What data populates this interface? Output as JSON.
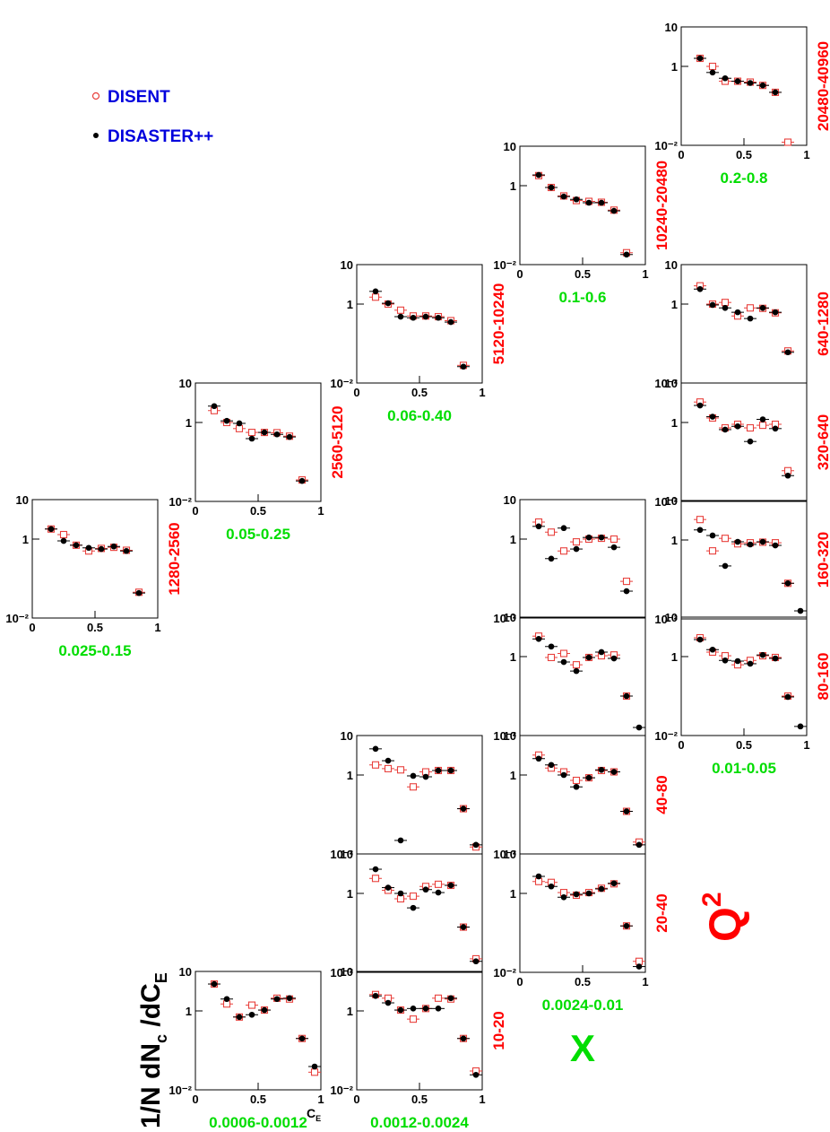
{
  "legend": [
    {
      "name": "DISENT",
      "color": "#e8403c"
    },
    {
      "name": "DISASTER++",
      "color": "#000000"
    }
  ],
  "y_label": [
    "1/N dN",
    "c",
    " /dC",
    "E"
  ],
  "x_label": [
    "C",
    "E"
  ],
  "q2_title": [
    "Q",
    "2"
  ],
  "x_title": "X",
  "chart_data": [
    {
      "type": "scatter",
      "q2_range": "20480-40960",
      "x_range": "0.2-0.8",
      "x": [
        0.15,
        0.25,
        0.35,
        0.45,
        0.55,
        0.65,
        0.75,
        0.85,
        0.95
      ],
      "xlim": [
        0,
        1
      ],
      "xticks": [
        0,
        0.5,
        1
      ],
      "ylim": [
        0.01,
        10
      ],
      "ylog": true,
      "yticks": [
        {
          "value": 0.01,
          "label": "10⁻²"
        },
        1,
        10
      ],
      "series": [
        {
          "values": [
            1.6,
            1.0,
            0.42,
            0.42,
            0.4,
            0.33,
            0.22,
            0.012,
            null
          ]
        },
        {
          "values": [
            1.6,
            0.7,
            0.5,
            0.42,
            0.38,
            0.33,
            0.22,
            null,
            null
          ]
        }
      ]
    },
    {
      "type": "scatter",
      "q2_range": "10240-20480",
      "x_range": "0.1-0.6",
      "x": [
        0.15,
        0.25,
        0.35,
        0.45,
        0.55,
        0.65,
        0.75,
        0.85,
        0.95
      ],
      "xlim": [
        0,
        1
      ],
      "xticks": [
        0,
        0.5,
        1
      ],
      "ylim": [
        0.01,
        10
      ],
      "ylog": true,
      "yticks": [
        {
          "value": 0.01,
          "label": "10⁻²"
        },
        1,
        10
      ],
      "series": [
        {
          "values": [
            1.8,
            0.9,
            0.55,
            0.42,
            0.4,
            0.38,
            0.24,
            0.02,
            null
          ]
        },
        {
          "values": [
            1.87,
            0.9,
            0.53,
            0.45,
            0.37,
            0.37,
            0.23,
            0.018,
            null
          ]
        }
      ]
    },
    {
      "type": "scatter",
      "q2_range": "5120-10240",
      "x_range": "0.06-0.40",
      "x": [
        0.15,
        0.25,
        0.35,
        0.45,
        0.55,
        0.65,
        0.75,
        0.85,
        0.95
      ],
      "xlim": [
        0,
        1
      ],
      "xticks": [
        0,
        0.5,
        1
      ],
      "ylim": [
        0.01,
        10
      ],
      "ylog": true,
      "yticks": [
        {
          "value": 0.01,
          "label": "10⁻²"
        },
        1,
        10
      ],
      "series": [
        {
          "values": [
            1.5,
            1.0,
            0.7,
            0.5,
            0.5,
            0.48,
            0.38,
            0.028,
            null
          ]
        },
        {
          "values": [
            2.1,
            1.05,
            0.48,
            0.45,
            0.48,
            0.45,
            0.35,
            0.026,
            null
          ]
        }
      ]
    },
    {
      "type": "scatter",
      "q2_range": "2560-5120",
      "x_range": "0.05-0.25",
      "x": [
        0.15,
        0.25,
        0.35,
        0.45,
        0.55,
        0.65,
        0.75,
        0.85,
        0.95
      ],
      "xlim": [
        0,
        1
      ],
      "xticks": [
        0,
        0.5,
        1
      ],
      "ylim": [
        0.01,
        10
      ],
      "ylog": true,
      "yticks": [
        {
          "value": 0.01,
          "label": "10⁻²"
        },
        1,
        10
      ],
      "series": [
        {
          "values": [
            2.0,
            1.0,
            0.7,
            0.56,
            0.56,
            0.55,
            0.45,
            0.035,
            null
          ]
        },
        {
          "values": [
            2.6,
            1.1,
            0.95,
            0.39,
            0.56,
            0.5,
            0.43,
            0.033,
            null
          ]
        }
      ]
    },
    {
      "type": "scatter",
      "q2_range": "1280-2560",
      "x_range": "0.025-0.15",
      "x": [
        0.15,
        0.25,
        0.35,
        0.45,
        0.55,
        0.65,
        0.75,
        0.85,
        0.95
      ],
      "xlim": [
        0,
        1
      ],
      "xticks": [
        0,
        0.5,
        1
      ],
      "ylim": [
        0.01,
        10
      ],
      "ylog": true,
      "yticks": [
        {
          "value": 0.01,
          "label": "10⁻²"
        },
        1,
        10
      ],
      "series": [
        {
          "values": [
            1.8,
            1.3,
            0.7,
            0.5,
            0.58,
            0.62,
            0.52,
            0.045,
            null
          ]
        },
        {
          "values": [
            1.8,
            0.9,
            0.7,
            0.6,
            0.56,
            0.65,
            0.5,
            0.043,
            null
          ]
        }
      ]
    },
    {
      "type": "scatter",
      "q2_range": "640-1280",
      "x": [
        0.15,
        0.25,
        0.35,
        0.45,
        0.55,
        0.65,
        0.75,
        0.85,
        0.95
      ],
      "xlim": [
        0,
        1
      ],
      "ylim": [
        0.01,
        10
      ],
      "ylog": true,
      "yticks": [
        {
          "value": 0.01,
          "label": "10⁻²"
        },
        1,
        10
      ],
      "series": [
        {
          "values": [
            2.9,
            1.0,
            1.1,
            0.5,
            0.8,
            0.78,
            0.6,
            0.065,
            null
          ]
        },
        {
          "values": [
            2.4,
            0.95,
            0.8,
            0.62,
            0.43,
            0.8,
            0.62,
            0.06,
            null
          ]
        }
      ]
    },
    {
      "type": "scatter",
      "q2_range": "320-640",
      "x": [
        0.15,
        0.25,
        0.35,
        0.45,
        0.55,
        0.65,
        0.75,
        0.85,
        0.95
      ],
      "xlim": [
        0,
        1
      ],
      "ylim": [
        0.01,
        10
      ],
      "ylog": true,
      "yticks": [
        {
          "value": 0.01,
          "label": "10⁻²"
        },
        1,
        10
      ],
      "series": [
        {
          "values": [
            3.3,
            1.3,
            0.73,
            0.9,
            0.73,
            0.85,
            0.9,
            0.06,
            null
          ]
        },
        {
          "values": [
            2.7,
            1.4,
            0.66,
            0.8,
            0.33,
            1.2,
            0.7,
            0.045,
            null
          ]
        }
      ]
    },
    {
      "type": "scatter",
      "q2_range": "160-320",
      "x": [
        0.15,
        0.25,
        0.35,
        0.45,
        0.55,
        0.65,
        0.75,
        0.85,
        0.95
      ],
      "xlim": [
        0,
        1
      ],
      "ylim": [
        0.01,
        10
      ],
      "ylog": true,
      "yticks": [
        {
          "value": 0.01,
          "label": "10⁻²"
        },
        1,
        10
      ],
      "series": [
        {
          "values": [
            3.3,
            0.53,
            1.1,
            0.8,
            0.85,
            0.88,
            0.85,
            0.08,
            null
          ]
        },
        {
          "values": [
            1.8,
            1.3,
            0.22,
            0.9,
            0.77,
            0.9,
            0.73,
            0.08,
            0.016
          ]
        }
      ]
    },
    {
      "type": "scatter",
      "q2_range": "80-160",
      "x_range": "0.01-0.05",
      "x": [
        0.15,
        0.25,
        0.35,
        0.45,
        0.55,
        0.65,
        0.75,
        0.85,
        0.95
      ],
      "xlim": [
        0,
        1
      ],
      "xticks": [
        0,
        0.5,
        1
      ],
      "ylim": [
        0.01,
        10
      ],
      "ylog": true,
      "yticks": [
        {
          "value": 0.01,
          "label": "10⁻²"
        },
        1,
        10
      ],
      "series": [
        {
          "values": [
            3.0,
            1.3,
            1.05,
            0.62,
            0.8,
            1.05,
            0.95,
            0.1,
            null
          ]
        },
        {
          "values": [
            2.7,
            1.5,
            0.8,
            0.77,
            0.66,
            1.1,
            0.9,
            0.095,
            0.017
          ]
        }
      ]
    },
    {
      "type": "scatter",
      "x": [
        0.15,
        0.25,
        0.35,
        0.45,
        0.55,
        0.65,
        0.75,
        0.85,
        0.95
      ],
      "xlim": [
        0,
        1
      ],
      "ylim": [
        0.01,
        10
      ],
      "ylog": true,
      "yticks": [
        {
          "value": 0.01,
          "label": "10⁻²"
        },
        1,
        10
      ],
      "series": [
        {
          "values": [
            2.7,
            1.5,
            0.5,
            0.85,
            1.0,
            1.05,
            1.0,
            0.085,
            null
          ]
        },
        {
          "values": [
            2.1,
            0.32,
            1.9,
            0.56,
            1.1,
            1.1,
            0.62,
            0.048,
            null
          ]
        }
      ]
    },
    {
      "type": "scatter",
      "x": [
        0.15,
        0.25,
        0.35,
        0.45,
        0.55,
        0.65,
        0.75,
        0.85,
        0.95
      ],
      "xlim": [
        0,
        1
      ],
      "ylim": [
        0.01,
        10
      ],
      "ylog": true,
      "yticks": [
        {
          "value": 0.01,
          "label": "10⁻²"
        },
        1,
        10
      ],
      "series": [
        {
          "values": [
            3.3,
            0.95,
            1.2,
            0.62,
            0.95,
            1.05,
            1.1,
            0.1,
            null
          ]
        },
        {
          "values": [
            2.8,
            1.8,
            0.73,
            0.43,
            0.95,
            1.3,
            0.9,
            0.1,
            0.016
          ]
        }
      ]
    },
    {
      "type": "scatter",
      "q2_range": "40-80",
      "x": [
        0.15,
        0.25,
        0.35,
        0.45,
        0.55,
        0.65,
        0.75,
        0.85,
        0.95
      ],
      "xlim": [
        0,
        1
      ],
      "ylim": [
        0.01,
        10
      ],
      "ylog": true,
      "yticks": [
        {
          "value": 0.01,
          "label": "10⁻²"
        },
        1,
        10
      ],
      "series": [
        {
          "values": [
            3.2,
            1.5,
            1.2,
            0.73,
            0.85,
            1.3,
            1.2,
            0.12,
            0.02
          ]
        },
        {
          "values": [
            2.6,
            1.8,
            1.0,
            0.5,
            0.85,
            1.35,
            1.2,
            0.12,
            0.017
          ]
        }
      ]
    },
    {
      "type": "scatter",
      "q2_range": "20-40",
      "x_range": "0.0024-0.01",
      "x": [
        0.15,
        0.25,
        0.35,
        0.45,
        0.55,
        0.65,
        0.75,
        0.85,
        0.95
      ],
      "xlim": [
        0,
        1
      ],
      "xticks": [
        0,
        0.5,
        1
      ],
      "ylim": [
        0.01,
        10
      ],
      "ylog": true,
      "yticks": [
        {
          "value": 0.01,
          "label": "10⁻²"
        },
        1,
        10
      ],
      "series": [
        {
          "values": [
            2.0,
            1.9,
            1.05,
            0.9,
            1.05,
            1.35,
            1.75,
            0.15,
            0.019
          ]
        },
        {
          "values": [
            2.7,
            1.5,
            0.8,
            0.95,
            1.0,
            1.3,
            1.8,
            0.15,
            0.014
          ]
        }
      ]
    },
    {
      "type": "scatter",
      "x": [
        0.15,
        0.25,
        0.35,
        0.45,
        0.55,
        0.65,
        0.75,
        0.85,
        0.95
      ],
      "xlim": [
        0,
        1
      ],
      "ylim": [
        0.01,
        10
      ],
      "ylog": true,
      "yticks": [
        {
          "value": 0.01,
          "label": "10⁻²"
        },
        1,
        10
      ],
      "series": [
        {
          "values": [
            1.8,
            1.45,
            1.35,
            0.5,
            1.2,
            1.3,
            1.3,
            0.14,
            0.015
          ]
        },
        {
          "values": [
            4.6,
            2.3,
            0.022,
            0.95,
            0.9,
            1.3,
            1.3,
            0.14,
            0.017
          ]
        }
      ]
    },
    {
      "type": "scatter",
      "x": [
        0.15,
        0.25,
        0.35,
        0.45,
        0.55,
        0.65,
        0.75,
        0.85,
        0.95
      ],
      "xlim": [
        0,
        1
      ],
      "ylim": [
        0.01,
        10
      ],
      "ylog": true,
      "yticks": [
        {
          "value": 0.01,
          "label": "10⁻²"
        },
        1,
        10
      ],
      "series": [
        {
          "values": [
            2.4,
            1.2,
            0.73,
            0.85,
            1.5,
            1.7,
            1.6,
            0.14,
            0.022
          ]
        },
        {
          "values": [
            4.1,
            1.4,
            1.0,
            0.43,
            1.25,
            1.05,
            1.6,
            0.14,
            0.019
          ]
        }
      ]
    },
    {
      "type": "scatter",
      "q2_range": "10-20",
      "x_range": "0.0012-0.0024",
      "x": [
        0.15,
        0.25,
        0.35,
        0.45,
        0.55,
        0.65,
        0.75,
        0.85,
        0.95
      ],
      "xlim": [
        0,
        1
      ],
      "xticks": [
        0,
        0.5,
        1
      ],
      "ylim": [
        0.01,
        10
      ],
      "ylog": true,
      "yticks": [
        {
          "value": 0.01,
          "label": "10⁻²"
        },
        1,
        10
      ],
      "series": [
        {
          "values": [
            2.6,
            2.1,
            1.05,
            0.62,
            1.15,
            2.1,
            2.0,
            0.2,
            0.03
          ]
        },
        {
          "values": [
            2.4,
            1.6,
            1.05,
            1.15,
            1.15,
            1.15,
            2.1,
            0.2,
            0.024
          ]
        }
      ]
    },
    {
      "type": "scatter",
      "x_range": "0.0006-0.0012",
      "x": [
        0.15,
        0.25,
        0.35,
        0.45,
        0.55,
        0.65,
        0.75,
        0.85,
        0.95
      ],
      "xlim": [
        0,
        1
      ],
      "xticks": [
        0,
        0.5,
        1
      ],
      "ylim": [
        0.01,
        10
      ],
      "ylog": true,
      "yticks": [
        {
          "value": 0.01,
          "label": "10⁻²"
        },
        1,
        10
      ],
      "series": [
        {
          "values": [
            4.8,
            1.5,
            0.7,
            1.4,
            1.05,
            2.1,
            2.0,
            0.2,
            0.028
          ]
        },
        {
          "values": [
            4.8,
            2.0,
            0.7,
            0.8,
            1.05,
            2.0,
            2.1,
            0.2,
            0.039
          ]
        }
      ]
    }
  ]
}
